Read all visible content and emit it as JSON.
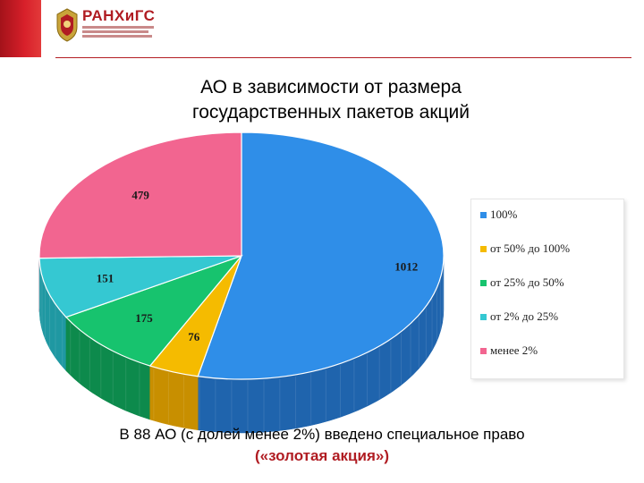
{
  "header": {
    "logo_title": "РАНХиГС"
  },
  "slide": {
    "title_line1": "АО в зависимости от размера",
    "title_line2": "государственных пакетов акций",
    "footer_line1": "В 88 АО (с долей менее 2%) введено специальное право",
    "footer_line2": "(«золотая акция»)"
  },
  "chart_data": {
    "type": "pie",
    "categories": [
      "100%",
      "от 50% до 100%",
      "от 25% до 50%",
      "от 2% до 25%",
      "менее 2%"
    ],
    "values": [
      1012,
      76,
      175,
      151,
      479
    ],
    "colors": [
      "#2f8ee8",
      "#f5bb00",
      "#17c36e",
      "#35c8d2",
      "#f26590"
    ],
    "side_colors": [
      "#1f64ad",
      "#c88f00",
      "#0d8a4c",
      "#1f98a2",
      "#c43c66"
    ],
    "legend_position": "right",
    "style": "3d"
  }
}
